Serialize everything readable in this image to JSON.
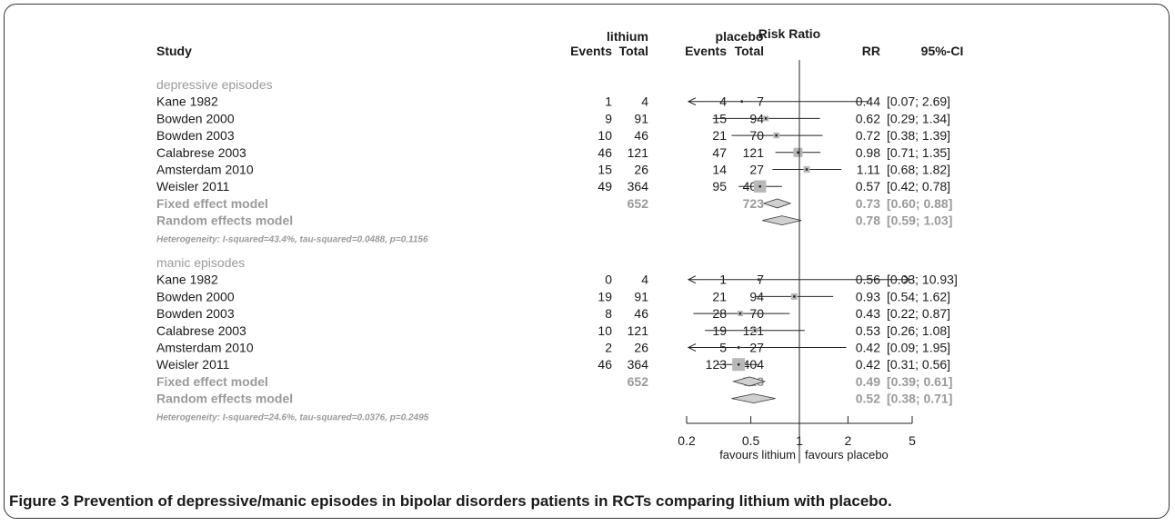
{
  "header": {
    "study": "Study",
    "group1": "lithium",
    "group2": "placebo",
    "events": "Events",
    "total": "Total",
    "effect": "Risk Ratio",
    "rr": "RR",
    "ci": "95%-CI"
  },
  "chart_data": {
    "type": "forest",
    "x_scale": "log",
    "xlim": [
      0.2,
      5
    ],
    "x_ticks": [
      {
        "value": 0.2,
        "label": "0.2"
      },
      {
        "value": 0.5,
        "label": "0.5"
      },
      {
        "value": 1,
        "label": "1"
      },
      {
        "value": 2,
        "label": "2"
      },
      {
        "value": 5,
        "label": "5"
      }
    ],
    "x_labels": [
      "favours lithium",
      "favours placebo"
    ],
    "reference_line": 1,
    "subgroups": [
      {
        "name": "depressive episodes",
        "studies": [
          {
            "study": "Kane 1982",
            "e1": "1",
            "n1": "4",
            "e2": "4",
            "n2": "7",
            "rr": 0.44,
            "lo": 0.07,
            "hi": 2.69,
            "rr_text": "0.44",
            "ci_text": "[0.07; 2.69]",
            "weight": 0.3
          },
          {
            "study": "Bowden 2000",
            "e1": "9",
            "n1": "91",
            "e2": "15",
            "n2": "94",
            "rr": 0.62,
            "lo": 0.29,
            "hi": 1.34,
            "rr_text": "0.62",
            "ci_text": "[0.29; 1.34]",
            "weight": 0.6
          },
          {
            "study": "Bowden 2003",
            "e1": "10",
            "n1": "46",
            "e2": "21",
            "n2": "70",
            "rr": 0.72,
            "lo": 0.38,
            "hi": 1.39,
            "rr_text": "0.72",
            "ci_text": "[0.38; 1.39]",
            "weight": 0.65
          },
          {
            "study": "Calabrese 2003",
            "e1": "46",
            "n1": "121",
            "e2": "47",
            "n2": "121",
            "rr": 0.98,
            "lo": 0.71,
            "hi": 1.35,
            "rr_text": "0.98",
            "ci_text": "[0.71; 1.35]",
            "weight": 1.0
          },
          {
            "study": "Amsterdam 2010",
            "e1": "15",
            "n1": "26",
            "e2": "14",
            "n2": "27",
            "rr": 1.11,
            "lo": 0.68,
            "hi": 1.82,
            "rr_text": "1.11",
            "ci_text": "[0.68; 1.82]",
            "weight": 0.7
          },
          {
            "study": "Weisler 2011",
            "e1": "49",
            "n1": "364",
            "e2": "95",
            "n2": "404",
            "rr": 0.57,
            "lo": 0.42,
            "hi": 0.78,
            "rr_text": "0.57",
            "ci_text": "[0.42; 0.78]",
            "weight": 1.35
          }
        ],
        "fixed": {
          "label": "Fixed effect model",
          "n1": "652",
          "n2": "723",
          "rr": 0.73,
          "lo": 0.6,
          "hi": 0.88,
          "rr_text": "0.73",
          "ci_text": "[0.60; 0.88]"
        },
        "random": {
          "label": "Random effects model",
          "rr": 0.78,
          "lo": 0.59,
          "hi": 1.03,
          "rr_text": "0.78",
          "ci_text": "[0.59; 1.03]"
        },
        "heterogeneity": "Heterogeneity: I-squared=43.4%, tau-squared=0.0488, p=0.1156"
      },
      {
        "name": "manic episodes",
        "studies": [
          {
            "study": "Kane 1982",
            "e1": "0",
            "n1": "4",
            "e2": "1",
            "n2": "7",
            "rr": 0.56,
            "lo": 0.03,
            "hi": 10.93,
            "rr_text": "0.56",
            "ci_text": "[0.03; 10.93]",
            "weight": 0.3
          },
          {
            "study": "Bowden 2000",
            "e1": "19",
            "n1": "91",
            "e2": "21",
            "n2": "94",
            "rr": 0.93,
            "lo": 0.54,
            "hi": 1.62,
            "rr_text": "0.93",
            "ci_text": "[0.54; 1.62]",
            "weight": 0.7
          },
          {
            "study": "Bowden 2003",
            "e1": "8",
            "n1": "46",
            "e2": "28",
            "n2": "70",
            "rr": 0.43,
            "lo": 0.22,
            "hi": 0.87,
            "rr_text": "0.43",
            "ci_text": "[0.22; 0.87]",
            "weight": 0.6
          },
          {
            "study": "Calabrese 2003",
            "e1": "10",
            "n1": "121",
            "e2": "19",
            "n2": "121",
            "rr": 0.53,
            "lo": 0.26,
            "hi": 1.08,
            "rr_text": "0.53",
            "ci_text": "[0.26; 1.08]",
            "weight": 0.55
          },
          {
            "study": "Amsterdam 2010",
            "e1": "2",
            "n1": "26",
            "e2": "5",
            "n2": "27",
            "rr": 0.42,
            "lo": 0.09,
            "hi": 1.95,
            "rr_text": "0.42",
            "ci_text": "[0.09; 1.95]",
            "weight": 0.35
          },
          {
            "study": "Weisler 2011",
            "e1": "46",
            "n1": "364",
            "e2": "123",
            "n2": "404",
            "rr": 0.42,
            "lo": 0.31,
            "hi": 0.56,
            "rr_text": "0.42",
            "ci_text": "[0.31; 0.56]",
            "weight": 1.4
          }
        ],
        "fixed": {
          "label": "Fixed effect model",
          "n1": "652",
          "n2": "723",
          "rr": 0.49,
          "lo": 0.39,
          "hi": 0.61,
          "rr_text": "0.49",
          "ci_text": "[0.39; 0.61]"
        },
        "random": {
          "label": "Random effects model",
          "rr": 0.52,
          "lo": 0.38,
          "hi": 0.71,
          "rr_text": "0.52",
          "ci_text": "[0.38; 0.71]"
        },
        "heterogeneity": "Heterogeneity: I-squared=24.6%, tau-squared=0.0376, p=0.2495"
      }
    ]
  },
  "caption": {
    "label": "Figure 3",
    "text": "Prevention of depressive/manic episodes in bipolar disorders patients in RCTs comparing lithium with placebo."
  },
  "colors": {
    "text": "#1a1a1a",
    "summary": "#9a9a9a",
    "square": "#b8b8b8"
  }
}
